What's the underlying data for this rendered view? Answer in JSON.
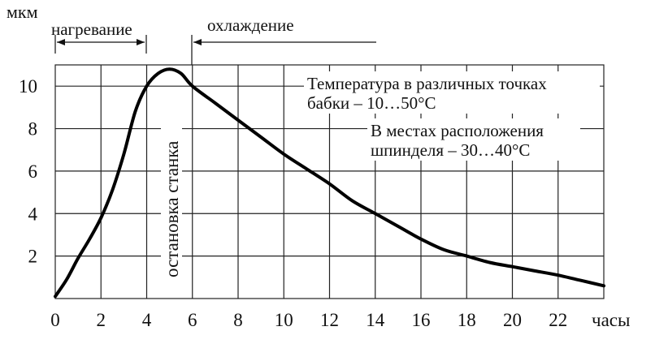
{
  "chart_data": {
    "type": "line",
    "title": "",
    "ylabel": "мкм",
    "xlabel": "часы",
    "xlim": [
      0,
      24
    ],
    "ylim": [
      0,
      11
    ],
    "grid": true,
    "x_ticks": [
      "0",
      "2",
      "4",
      "6",
      "8",
      "10",
      "12",
      "14",
      "16",
      "18",
      "20",
      "22"
    ],
    "y_ticks": [
      "2",
      "4",
      "6",
      "8",
      "10"
    ],
    "series": [
      {
        "x": [
          0,
          0.5,
          1,
          1.5,
          2,
          2.5,
          3,
          3.5,
          4,
          4.5,
          5,
          5.5,
          6,
          7,
          8,
          9,
          10,
          11,
          12,
          13,
          14,
          15,
          16,
          17,
          18,
          19,
          20,
          21,
          22,
          23,
          24
        ],
        "y": [
          0.1,
          0.9,
          1.9,
          2.8,
          3.8,
          5.1,
          6.8,
          8.8,
          10.0,
          10.6,
          10.8,
          10.6,
          10.0,
          9.2,
          8.4,
          7.6,
          6.8,
          6.1,
          5.4,
          4.6,
          4.0,
          3.4,
          2.8,
          2.3,
          2.0,
          1.7,
          1.5,
          1.3,
          1.1,
          0.85,
          0.6
        ]
      }
    ],
    "annotations": {
      "heating": "нагревание",
      "cooling": "охлаждение",
      "stop": "остановка станка",
      "note1_line1": "Температура в различных точках",
      "note1_line2": "бабки – 10…50°С",
      "note2_line1": "В местах расположения",
      "note2_line2": "шпинделя – 30…40°С"
    }
  },
  "colors": {
    "ink": "#111111",
    "grid": "#222222"
  }
}
